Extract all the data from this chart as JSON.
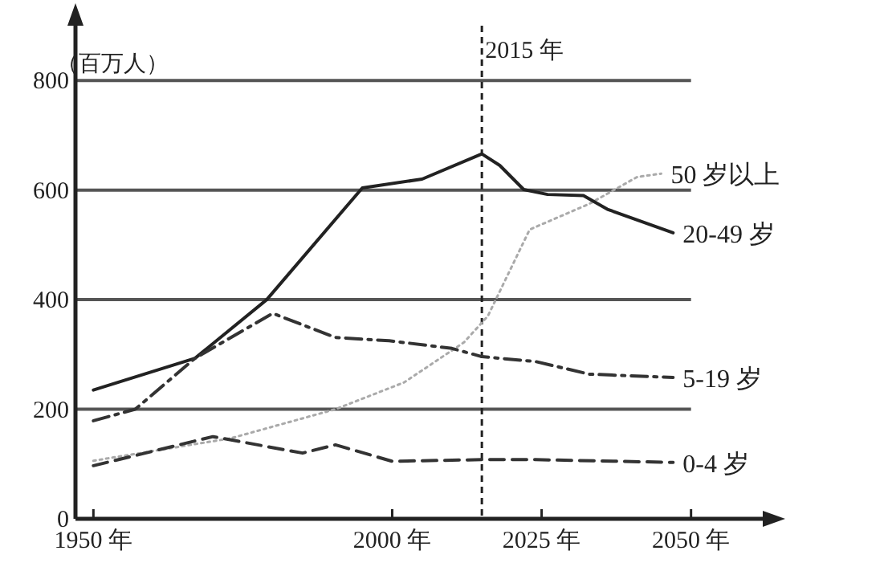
{
  "chart_data": {
    "type": "line",
    "ylabel": "（百万人）",
    "xlim": [
      1947,
      2062
    ],
    "ylim": [
      0,
      900
    ],
    "xticks": [
      {
        "value": 1950,
        "label": "1950 年"
      },
      {
        "value": 2000,
        "label": "2000 年"
      },
      {
        "value": 2025,
        "label": "2025 年"
      },
      {
        "value": 2050,
        "label": "2050 年"
      }
    ],
    "yticks": [
      0,
      200,
      400,
      600,
      800
    ],
    "grid": "y",
    "ref_lines": [
      {
        "axis": "x",
        "value": 2015,
        "label": "2015 年",
        "color": "#222222",
        "line_style": "dashed"
      }
    ],
    "series": [
      {
        "name": "50 岁以上",
        "color": "#aaaaaa",
        "line_style": "dotted",
        "x": [
          1950,
          1973,
          1990.5,
          2002,
          2012,
          2016,
          2023,
          2033,
          2041,
          2045
        ],
        "values": [
          106,
          147,
          200,
          249,
          322,
          370,
          528,
          575,
          624,
          630
        ]
      },
      {
        "name": "20-49 岁",
        "color": "#222222",
        "line_style": "solid",
        "x": [
          1950,
          1967,
          1979,
          1995,
          2005,
          2015,
          2018,
          2022,
          2026,
          2032,
          2036,
          2047
        ],
        "values": [
          235,
          293,
          400,
          604,
          620,
          666,
          645,
          601,
          592,
          590,
          565,
          522
        ]
      },
      {
        "name": "5-19 岁",
        "color": "#333333",
        "line_style": "dashdot",
        "x": [
          1950,
          1957,
          1967,
          1980,
          1990.5,
          1999.5,
          2010,
          2015,
          2024,
          2033,
          2047
        ],
        "values": [
          179,
          200,
          293,
          375,
          331,
          325,
          311,
          296,
          287,
          264,
          258
        ]
      },
      {
        "name": "0-4 岁",
        "color": "#333333",
        "line_style": "dashed",
        "x": [
          1950,
          1970,
          1985,
          1990.5,
          2000,
          2015,
          2024,
          2047
        ],
        "values": [
          97,
          150,
          120,
          135,
          105,
          108,
          108,
          103
        ]
      }
    ]
  }
}
